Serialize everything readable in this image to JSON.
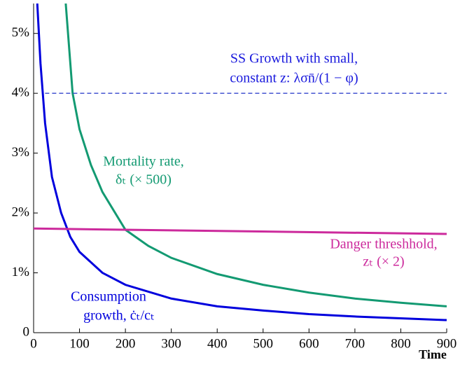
{
  "chart_data": {
    "type": "line",
    "xlabel": "Time",
    "xlim": [
      0,
      900
    ],
    "xticks": [
      0,
      100,
      200,
      300,
      400,
      500,
      600,
      700,
      800,
      900
    ],
    "ylim": [
      0,
      5.5
    ],
    "yticks": [
      0,
      {
        "value": 1,
        "label": "1%"
      },
      {
        "value": 2,
        "label": "2%"
      },
      {
        "value": 3,
        "label": "3%"
      },
      {
        "value": 4,
        "label": "4%"
      },
      {
        "value": 5,
        "label": "5%"
      }
    ],
    "series": [
      {
        "name": "Consumption growth",
        "color": "#0000dd",
        "dash": false,
        "x": [
          8,
          15,
          25,
          40,
          60,
          80,
          100,
          150,
          200,
          300,
          400,
          500,
          600,
          700,
          800,
          900
        ],
        "values": [
          5.5,
          4.5,
          3.5,
          2.6,
          2.0,
          1.6,
          1.35,
          1.0,
          0.8,
          0.57,
          0.44,
          0.37,
          0.31,
          0.27,
          0.24,
          0.21
        ]
      },
      {
        "name": "Mortality rate",
        "color": "#139a72",
        "dash": false,
        "x": [
          70,
          85,
          100,
          125,
          150,
          200,
          250,
          300,
          400,
          500,
          600,
          700,
          800,
          900
        ],
        "values": [
          5.5,
          4.0,
          3.4,
          2.8,
          2.35,
          1.72,
          1.45,
          1.25,
          0.98,
          0.8,
          0.67,
          0.57,
          0.5,
          0.44
        ]
      },
      {
        "name": "Danger threshhold",
        "color": "#cc2a9c",
        "dash": false,
        "x": [
          0,
          900
        ],
        "values": [
          1.74,
          1.65
        ]
      },
      {
        "name": "SS Growth",
        "color": "#3344cc",
        "dash": true,
        "x": [
          25,
          900
        ],
        "values": [
          4,
          4
        ]
      }
    ],
    "annotations": [
      {
        "lines": [
          "SS Growth with small,",
          "constant  z: λσn̄/(1 − φ)"
        ],
        "color": "#1a1add"
      },
      {
        "lines": [
          "Mortality rate,",
          "δₜ (× 500)"
        ],
        "color": "#139a72"
      },
      {
        "lines": [
          "Danger threshhold,",
          "zₜ (× 2)"
        ],
        "color": "#cc2a9c"
      },
      {
        "lines": [
          "Consumption",
          "growth, ċₜ/cₜ"
        ],
        "color": "#0000dd"
      }
    ]
  }
}
